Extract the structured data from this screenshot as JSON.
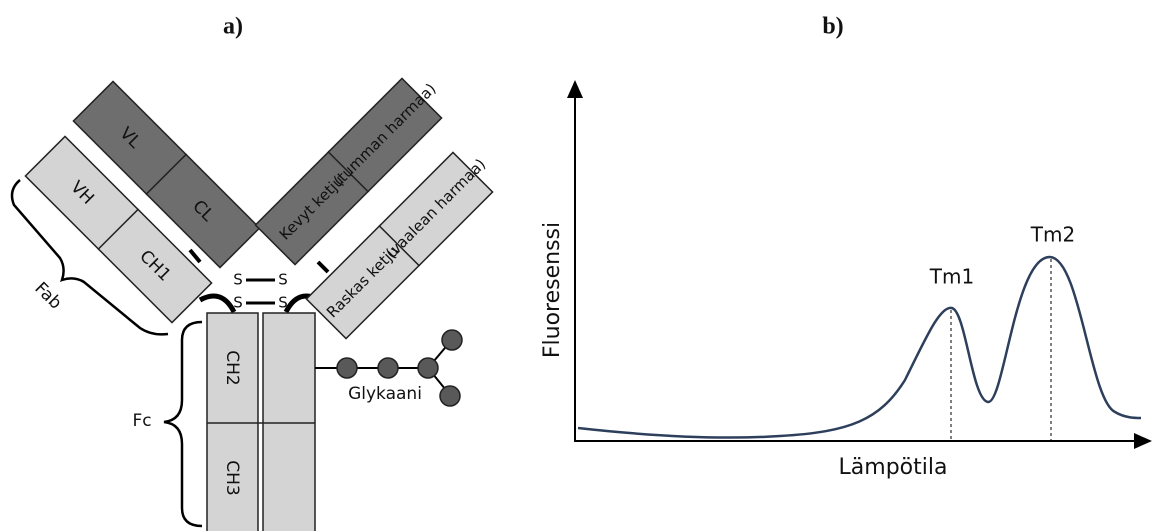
{
  "panel_a": {
    "label": "a)",
    "domains": {
      "vl": "VL",
      "cl": "CL",
      "vh": "VH",
      "ch1": "CH1",
      "ch2": "CH2",
      "ch3": "CH3"
    },
    "legend": {
      "light_chain": "Kevyt ketju",
      "light_chain_note": "(tumman harmaa)",
      "heavy_chain": "Raskas ketju",
      "heavy_chain_note": "(vaalean harmaa)"
    },
    "disulfide": [
      "S",
      "S",
      "S",
      "S"
    ],
    "regions": {
      "fab": "Fab",
      "fc": "Fc"
    },
    "glycan": "Glykaani"
  },
  "panel_b": {
    "label": "b)",
    "y_axis": "Fluoresenssi",
    "x_axis": "Lämpötila",
    "peaks": [
      "Tm1",
      "Tm2"
    ]
  }
}
